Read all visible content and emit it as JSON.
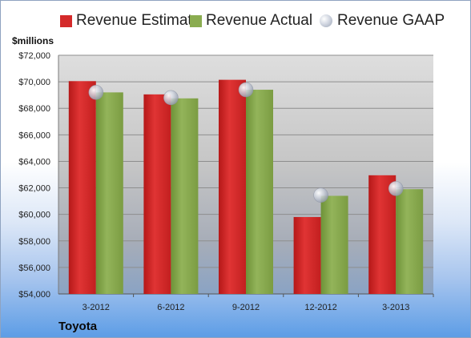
{
  "chart_data": {
    "type": "bar",
    "unit_label": "$millions",
    "footer_label": "Toyota",
    "categories": [
      "3-2012",
      "6-2012",
      "9-2012",
      "12-2012",
      "3-2013"
    ],
    "series": [
      {
        "name": "Revenue Estimate",
        "kind": "bar",
        "color": "#d42a2a",
        "values": [
          70050,
          69050,
          70150,
          59800,
          62950
        ]
      },
      {
        "name": "Revenue Actual",
        "kind": "bar",
        "color": "#8aac50",
        "values": [
          69200,
          68750,
          69400,
          61400,
          61900
        ]
      },
      {
        "name": "Revenue GAAP",
        "kind": "point",
        "color": "#c8ccd6",
        "values": [
          69200,
          68800,
          69400,
          61450,
          61950
        ]
      }
    ],
    "ylim": [
      54000,
      72000
    ],
    "y_ticks": [
      "$54,000",
      "$56,000",
      "$58,000",
      "$60,000",
      "$62,000",
      "$64,000",
      "$66,000",
      "$68,000",
      "$70,000",
      "$72,000"
    ],
    "legend_position": "top",
    "grid": true
  }
}
